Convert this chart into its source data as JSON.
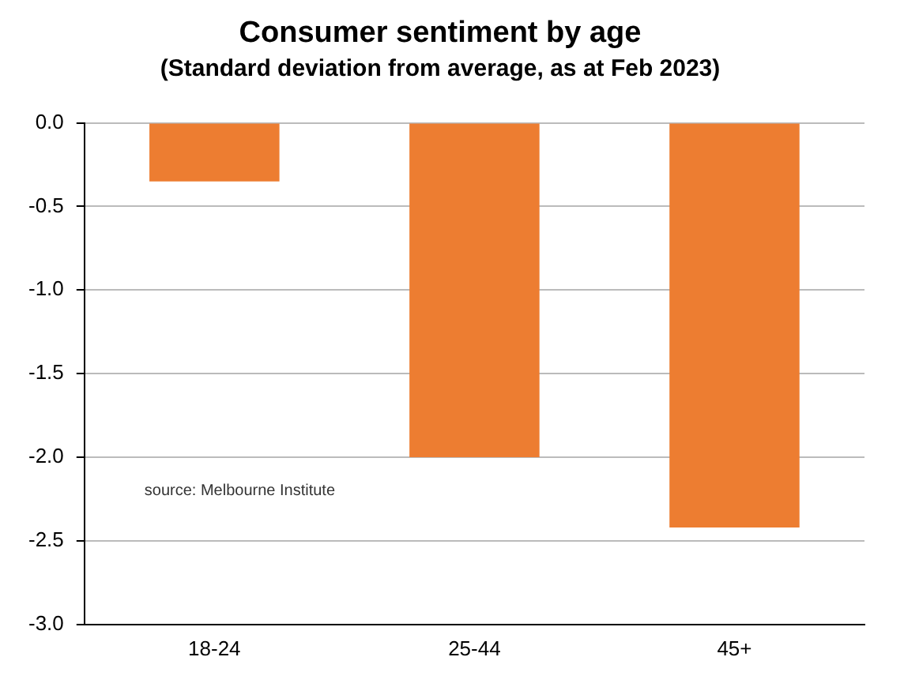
{
  "chart_data": {
    "type": "bar",
    "title": "Consumer sentiment by age",
    "subtitle": "(Standard deviation from average, as at Feb 2023)",
    "categories": [
      "18-24",
      "25-44",
      "45+"
    ],
    "values": [
      -0.35,
      -2.0,
      -2.42
    ],
    "color": "#ed7d31",
    "ylim": [
      -3.0,
      0.0
    ],
    "yticks": [
      {
        "value": -3,
        "label": "-3.0"
      },
      {
        "value": -2.5,
        "label": "-2.5"
      },
      {
        "value": -2,
        "label": "-2.0"
      },
      {
        "value": -1.5,
        "label": "-1.5"
      },
      {
        "value": -1,
        "label": "-1.0"
      },
      {
        "value": -0.5,
        "label": "-0.5"
      },
      {
        "value": 0,
        "label": "0.0"
      }
    ],
    "grid": "y",
    "legend": false,
    "annotations": [
      "source: Melbourne Institute"
    ]
  }
}
